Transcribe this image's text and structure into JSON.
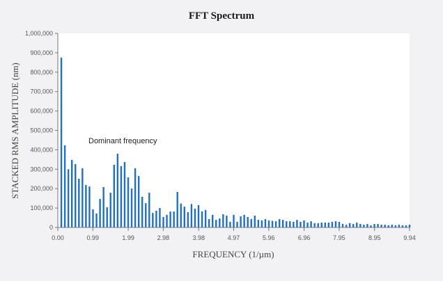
{
  "chart_data": {
    "type": "bar",
    "title": "FFT Spectrum",
    "xlabel": "FREQUENCY (1/µm)",
    "ylabel": "STACKED RMS AMPLITUDE (nm)",
    "xlim": [
      0,
      9.94
    ],
    "ylim": [
      0,
      1000000
    ],
    "x_ticks": [
      "0.00",
      "0.99",
      "1.99",
      "2.98",
      "3.98",
      "4.97",
      "5.96",
      "6.96",
      "7.95",
      "8.95",
      "9.94"
    ],
    "y_ticks": [
      "0",
      "100,000",
      "200,000",
      "300,000",
      "400,000",
      "500,000",
      "600,000",
      "700,000",
      "800,000",
      "900,000",
      "1,000,000"
    ],
    "grid": false,
    "color": "#1f6fc5",
    "annotation": {
      "text": "Dominant frequency",
      "x": 0.99,
      "y": 430000
    },
    "x_step": 0.0994,
    "values": [
      875000,
      423000,
      300000,
      348000,
      326000,
      251000,
      305000,
      219000,
      211000,
      93000,
      72000,
      147000,
      208000,
      104000,
      179000,
      323000,
      380000,
      316000,
      337000,
      258000,
      201000,
      305000,
      265000,
      158000,
      125000,
      179000,
      75000,
      86000,
      100000,
      54000,
      65000,
      82000,
      82000,
      183000,
      123000,
      107000,
      79000,
      121000,
      97000,
      115000,
      83000,
      90000,
      43000,
      65000,
      39000,
      46000,
      68000,
      61000,
      29000,
      65000,
      29000,
      57000,
      65000,
      54000,
      43000,
      61000,
      39000,
      36000,
      43000,
      36000,
      34000,
      32000,
      43000,
      39000,
      32000,
      32000,
      29000,
      39000,
      29000,
      36000,
      25000,
      32000,
      22000,
      22000,
      25000,
      25000,
      25000,
      29000,
      32000,
      29000,
      18000,
      14000,
      22000,
      18000,
      25000,
      18000,
      14000,
      18000,
      11000,
      18000,
      18000,
      14000,
      14000,
      11000,
      14000,
      11000,
      14000,
      11000,
      11000,
      14000
    ]
  }
}
